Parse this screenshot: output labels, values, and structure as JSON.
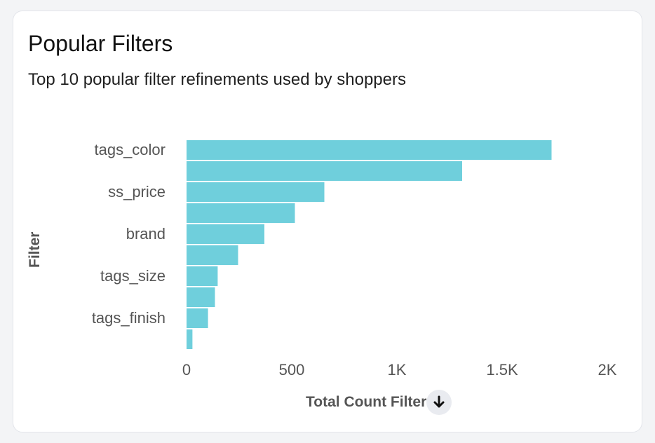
{
  "card": {
    "title": "Popular Filters",
    "subtitle": "Top 10 popular filter refinements used by shoppers"
  },
  "sort_icon": "arrow-down-icon",
  "chart_data": {
    "type": "bar",
    "orientation": "horizontal",
    "categories": [
      "tags_color",
      "",
      "ss_price",
      "",
      "brand",
      "",
      "tags_size",
      "",
      "tags_finish",
      ""
    ],
    "values": [
      1735,
      1310,
      655,
      515,
      370,
      245,
      148,
      135,
      102,
      28
    ],
    "xlabel": "Total Count Filter",
    "ylabel": "Filter",
    "xlim": [
      0,
      2000
    ],
    "xticks": [
      0,
      500,
      1000,
      1500,
      2000
    ],
    "xtick_labels": [
      "0",
      "500",
      "1K",
      "1.5K",
      "2K"
    ],
    "bar_color": "#6fcfdc",
    "grid": false,
    "legend": "none"
  }
}
